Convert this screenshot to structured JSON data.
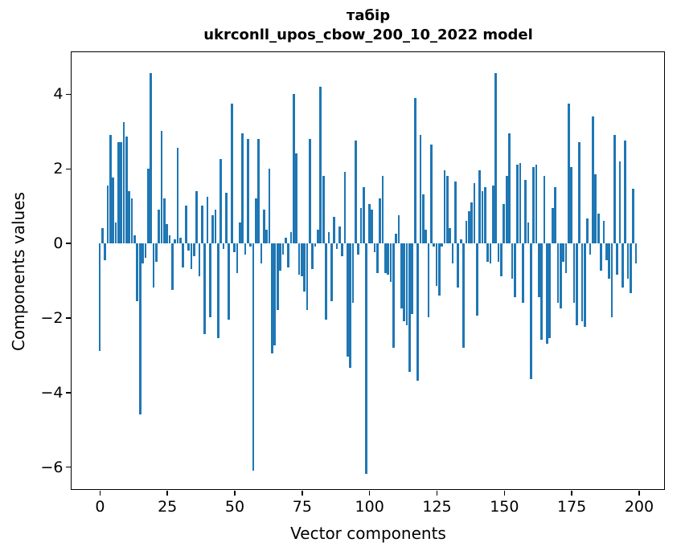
{
  "chart_data": {
    "type": "bar",
    "title": "табір",
    "subtitle": "ukrconll_upos_cbow_200_10_2022 model",
    "xlabel": "Vector components",
    "ylabel": "Components values",
    "bar_color": "#1f77b4",
    "background_color": "#ffffff",
    "grid": "off",
    "legend": "none",
    "bar_width_fraction": 0.8,
    "xlim": [
      -10.4,
      209.4
    ],
    "ylim": [
      -6.6,
      5.12
    ],
    "xticks": [
      0,
      25,
      50,
      75,
      100,
      125,
      150,
      175,
      200
    ],
    "yticks": [
      4,
      2,
      0,
      -2,
      -4,
      -6
    ],
    "x_start": 0,
    "values": [
      -2.9,
      0.4,
      -0.45,
      1.55,
      2.9,
      1.75,
      0.55,
      2.7,
      2.7,
      3.25,
      2.85,
      1.4,
      1.2,
      0.2,
      -1.55,
      -4.6,
      -0.55,
      -0.4,
      2.0,
      4.55,
      -1.2,
      -0.5,
      0.9,
      3.0,
      1.2,
      0.5,
      0.2,
      -1.25,
      0.1,
      2.55,
      0.15,
      -0.65,
      1.0,
      -0.2,
      -0.7,
      -0.35,
      1.4,
      -0.9,
      1.0,
      -2.45,
      1.25,
      -2.0,
      0.75,
      0.9,
      -2.55,
      2.25,
      -0.15,
      1.35,
      -2.05,
      3.75,
      -0.25,
      -0.8,
      0.55,
      2.95,
      -0.3,
      2.8,
      -0.1,
      -6.1,
      1.2,
      2.8,
      -0.55,
      0.9,
      0.35,
      2.0,
      -2.95,
      -2.75,
      -1.8,
      -0.75,
      -0.3,
      0.15,
      -0.65,
      0.3,
      4.0,
      2.4,
      -0.85,
      -0.9,
      -1.3,
      -1.8,
      2.8,
      -0.7,
      -0.1,
      0.35,
      4.2,
      1.8,
      -2.05,
      0.3,
      -1.55,
      0.7,
      -0.15,
      0.45,
      -0.35,
      1.9,
      -3.05,
      -3.35,
      -1.6,
      2.75,
      -0.3,
      0.95,
      1.5,
      -6.2,
      1.05,
      0.9,
      -0.25,
      -0.8,
      1.2,
      1.8,
      -0.8,
      -0.85,
      -1.05,
      -2.8,
      0.25,
      0.75,
      -1.75,
      -2.1,
      -2.2,
      -3.45,
      -1.9,
      3.9,
      -3.7,
      2.9,
      1.3,
      0.35,
      -2.0,
      2.65,
      -0.1,
      -1.15,
      -1.4,
      -0.1,
      1.95,
      1.8,
      0.4,
      -0.55,
      1.65,
      -1.2,
      0.1,
      -2.8,
      0.6,
      0.85,
      1.1,
      1.6,
      -1.95,
      1.95,
      1.4,
      1.5,
      -0.5,
      -0.55,
      1.55,
      4.55,
      -0.5,
      -0.9,
      1.05,
      1.8,
      2.95,
      -0.95,
      -1.45,
      2.1,
      2.15,
      -1.6,
      1.7,
      0.55,
      -3.65,
      2.05,
      2.1,
      -1.45,
      -2.6,
      1.8,
      -2.7,
      -2.55,
      0.95,
      1.5,
      -1.6,
      -1.75,
      -0.5,
      -0.8,
      3.75,
      2.05,
      -1.6,
      -2.2,
      2.7,
      -2.1,
      -2.25,
      0.65,
      -0.3,
      3.4,
      1.85,
      0.8,
      -0.75,
      0.6,
      -0.45,
      -0.95,
      -2.0,
      2.9,
      -0.85,
      2.2,
      -1.2,
      2.75,
      -0.95,
      -1.35,
      1.45,
      -0.55
    ]
  }
}
